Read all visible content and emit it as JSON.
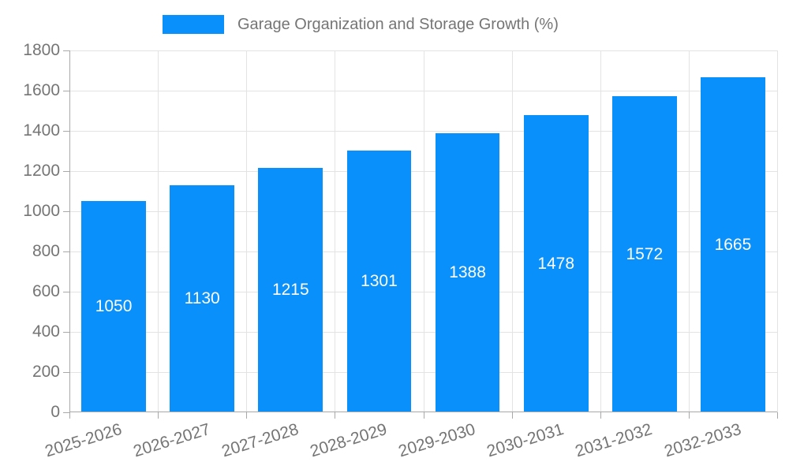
{
  "chart_data": {
    "type": "bar",
    "title": "Garage Organization and Storage Growth (%)",
    "categories": [
      "2025-2026",
      "2026-2027",
      "2027-2028",
      "2028-2029",
      "2029-2030",
      "2030-2031",
      "2031-2032",
      "2032-2033"
    ],
    "values": [
      1050,
      1130,
      1215,
      1301,
      1388,
      1478,
      1572,
      1665
    ],
    "xlabel": "",
    "ylabel": "",
    "ylim": [
      0,
      1800
    ],
    "ytick_step": 200,
    "grid": true,
    "legend_position": "top",
    "bar_labels_inside": true,
    "colors": {
      "bar": "#0A90FA",
      "grid": "#e3e3e3",
      "axis": "#a8a8a8",
      "text": "#757575",
      "bar_label": "#ffffff",
      "background": "#ffffff"
    }
  }
}
